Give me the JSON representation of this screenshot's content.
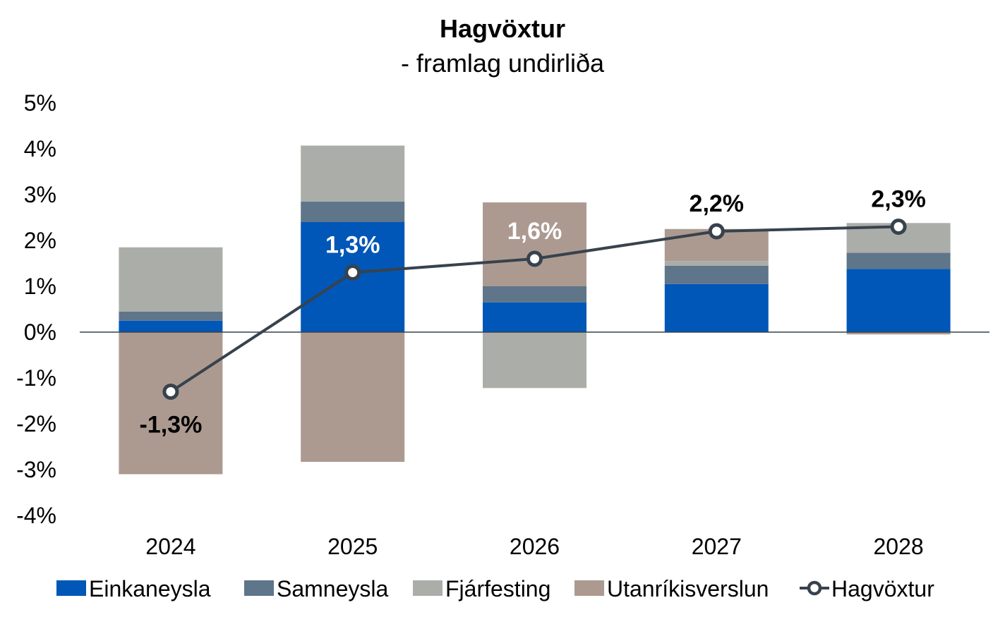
{
  "chart_data": {
    "type": "bar",
    "stacked": true,
    "title": "Hagvöxtur",
    "subtitle": "- framlag undirliða",
    "categories": [
      "2024",
      "2025",
      "2026",
      "2027",
      "2028"
    ],
    "y_ticks": [
      "5%",
      "4%",
      "3%",
      "2%",
      "1%",
      "0%",
      "-1%",
      "-2%",
      "-3%",
      "-4%"
    ],
    "ylim": [
      -4,
      5
    ],
    "series": [
      {
        "name": "Einkaneysla",
        "type": "bar",
        "color": "#0057B7",
        "values": [
          0.25,
          2.4,
          0.65,
          1.05,
          1.38
        ]
      },
      {
        "name": "Samneysla",
        "type": "bar",
        "color": "#5F7589",
        "values": [
          0.2,
          0.45,
          0.35,
          0.4,
          0.35
        ]
      },
      {
        "name": "Fjárfesting",
        "type": "bar",
        "color": "#ABADA8",
        "values": [
          1.4,
          1.22,
          -1.22,
          0.1,
          0.65
        ]
      },
      {
        "name": "Utanríkisverslun",
        "type": "bar",
        "color": "#AC9A91",
        "values": [
          -3.1,
          -2.83,
          1.83,
          0.7,
          -0.05
        ]
      },
      {
        "name": "Hagvöxtur",
        "type": "line",
        "color": "#37424D",
        "values": [
          -1.3,
          1.3,
          1.6,
          2.2,
          2.3
        ]
      }
    ],
    "data_labels": [
      "-1,3%",
      "1,3%",
      "1,6%",
      "2,2%",
      "2,3%"
    ],
    "data_label_colors": [
      "#000000",
      "#FFFFFF",
      "#FFFFFF",
      "#000000",
      "#000000"
    ],
    "legend_position": "bottom",
    "grid": false
  }
}
